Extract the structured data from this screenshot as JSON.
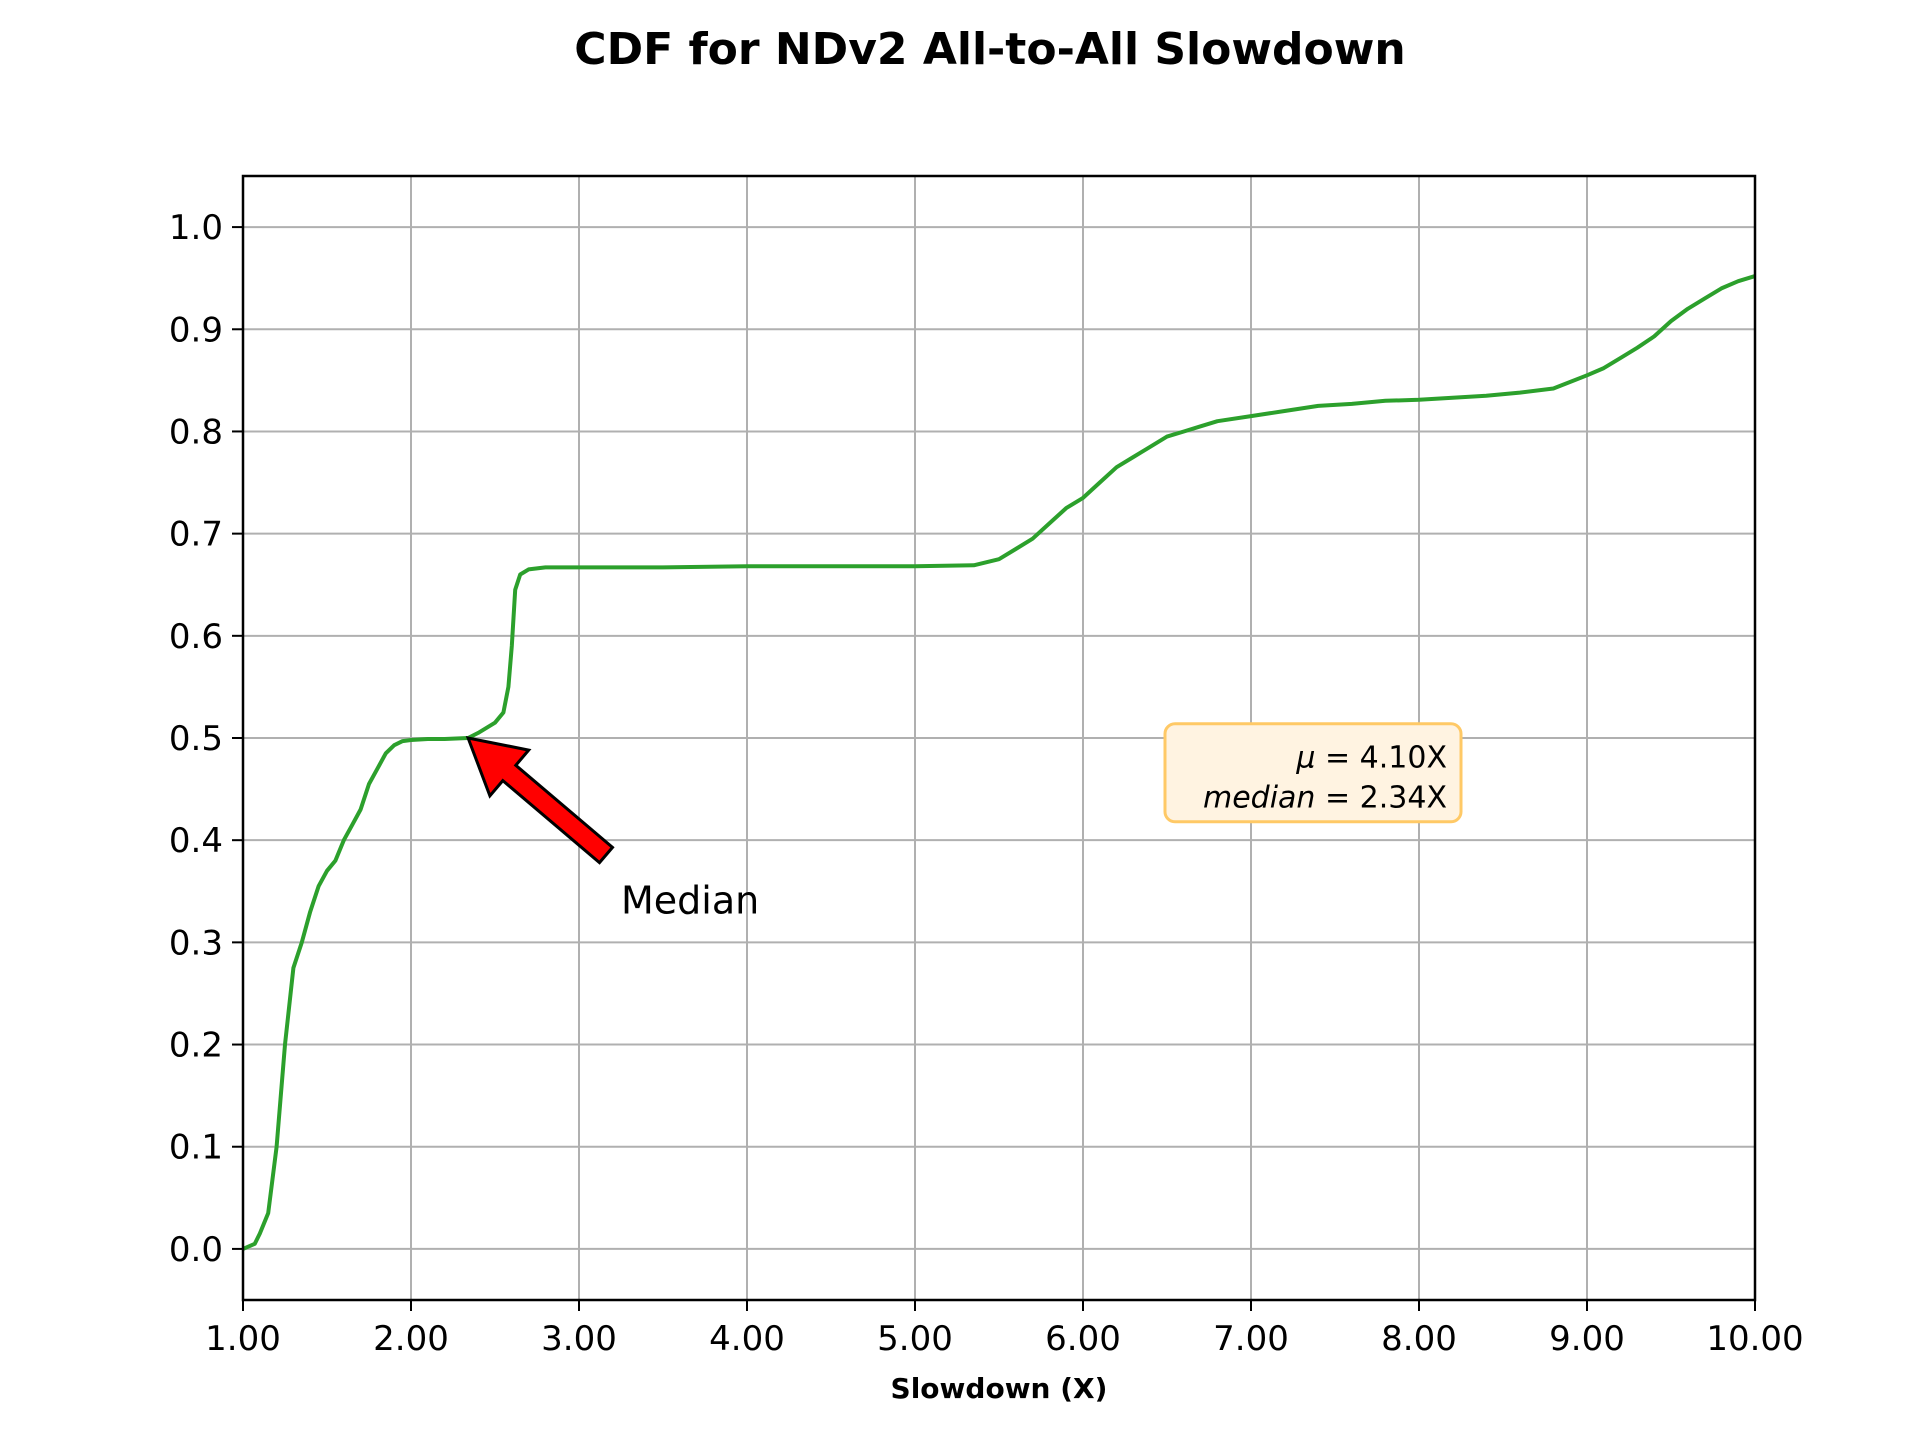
{
  "chart_data": {
    "type": "line",
    "title": "CDF for NDv2 All-to-All Slowdown",
    "xlabel": "Slowdown (X)",
    "ylabel": "",
    "xlim": [
      1.0,
      10.0
    ],
    "ylim": [
      -0.05,
      1.05
    ],
    "x_ticks": [
      "1.00",
      "2.00",
      "3.00",
      "4.00",
      "5.00",
      "6.00",
      "7.00",
      "8.00",
      "9.00",
      "10.00"
    ],
    "y_ticks": [
      "0.0",
      "0.1",
      "0.2",
      "0.3",
      "0.4",
      "0.5",
      "0.6",
      "0.7",
      "0.8",
      "0.9",
      "1.0"
    ],
    "grid": true,
    "series": [
      {
        "color": "#2ca02c",
        "x": [
          1.0,
          1.07,
          1.1,
          1.15,
          1.2,
          1.25,
          1.3,
          1.35,
          1.4,
          1.45,
          1.5,
          1.55,
          1.6,
          1.65,
          1.7,
          1.75,
          1.8,
          1.85,
          1.9,
          1.95,
          2.0,
          2.1,
          2.2,
          2.34,
          2.4,
          2.45,
          2.5,
          2.55,
          2.58,
          2.6,
          2.62,
          2.65,
          2.7,
          2.75,
          2.8,
          3.0,
          3.5,
          4.0,
          4.5,
          5.0,
          5.35,
          5.5,
          5.6,
          5.7,
          5.8,
          5.9,
          6.0,
          6.1,
          6.2,
          6.3,
          6.4,
          6.5,
          6.6,
          6.7,
          6.8,
          7.0,
          7.2,
          7.4,
          7.6,
          7.8,
          8.0,
          8.2,
          8.4,
          8.6,
          8.8,
          9.0,
          9.1,
          9.2,
          9.3,
          9.4,
          9.5,
          9.6,
          9.7,
          9.8,
          9.9,
          10.0
        ],
        "y": [
          0.0,
          0.005,
          0.015,
          0.035,
          0.1,
          0.2,
          0.275,
          0.3,
          0.33,
          0.355,
          0.37,
          0.38,
          0.4,
          0.415,
          0.43,
          0.455,
          0.47,
          0.485,
          0.493,
          0.497,
          0.498,
          0.499,
          0.499,
          0.5,
          0.505,
          0.51,
          0.515,
          0.525,
          0.55,
          0.59,
          0.645,
          0.66,
          0.665,
          0.666,
          0.667,
          0.667,
          0.667,
          0.668,
          0.668,
          0.668,
          0.669,
          0.675,
          0.685,
          0.695,
          0.71,
          0.725,
          0.735,
          0.75,
          0.765,
          0.775,
          0.785,
          0.795,
          0.8,
          0.805,
          0.81,
          0.815,
          0.82,
          0.825,
          0.827,
          0.83,
          0.831,
          0.833,
          0.835,
          0.838,
          0.842,
          0.855,
          0.862,
          0.872,
          0.882,
          0.893,
          0.908,
          0.92,
          0.93,
          0.94,
          0.947,
          0.952
        ]
      }
    ],
    "annotation": {
      "text": "Median",
      "target_x": 2.34,
      "target_y": 0.5,
      "text_x": 3.25,
      "text_y": 0.34,
      "arrow_color": "#ff0000"
    },
    "stats_box": {
      "mean_symbol": "μ",
      "mean_text": " = 4.10X",
      "median_word": "median",
      "median_text": " = 2.34X",
      "anchor_x": 8.25,
      "anchor_y": 0.42,
      "face_color": "#fff3e1",
      "edge_color": "#ffc966"
    }
  }
}
